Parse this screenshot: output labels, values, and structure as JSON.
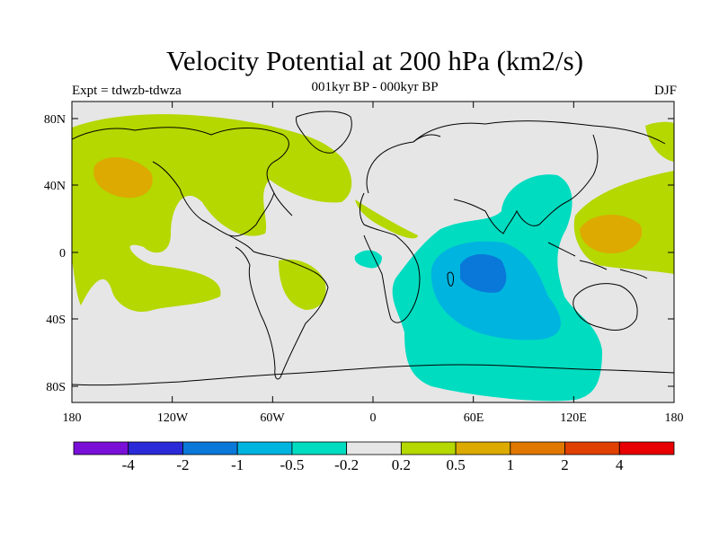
{
  "title": "Velocity Potential at 200 hPa (km2/s)",
  "subtitle": "001kyr BP - 000kyr BP",
  "left_label": "Expt = tdwzb-tdwza",
  "right_label": "DJF",
  "lat_ticks": [
    "80N",
    "40N",
    "0",
    "40S",
    "80S"
  ],
  "lon_ticks": [
    "180",
    "120W",
    "60W",
    "0",
    "60E",
    "120E",
    "180"
  ],
  "colorbar": {
    "colors": [
      "#7a10d8",
      "#2a2ad8",
      "#0a78d8",
      "#00b4e0",
      "#00dcc0",
      "#e6e6e6",
      "#b4d800",
      "#dcaa00",
      "#e07800",
      "#e04000",
      "#e80000"
    ],
    "labels": [
      "-4",
      "-2",
      "-1",
      "-0.5",
      "-0.2",
      "0.2",
      "0.5",
      "1",
      "2",
      "4"
    ]
  }
}
